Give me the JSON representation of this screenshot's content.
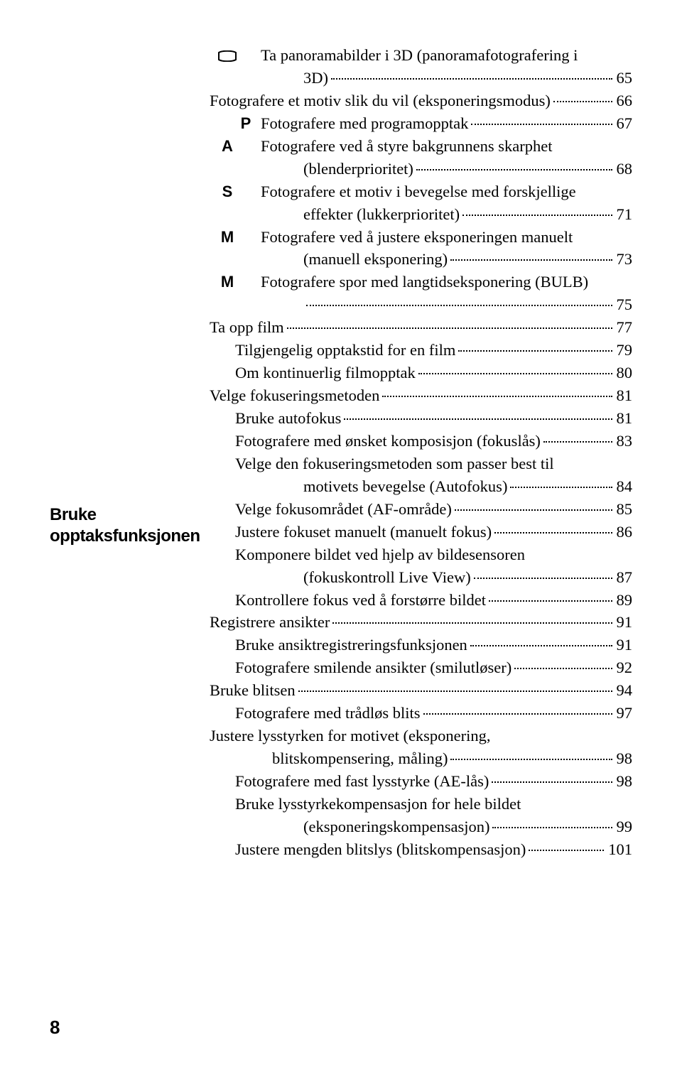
{
  "sidebar": {
    "label_line1": "Bruke",
    "label_line2": "opptaksfunksjonen"
  },
  "footer": {
    "page_number": "8"
  },
  "toc": [
    {
      "sym": "pano",
      "lv": 1,
      "wrap": true,
      "t1": "Ta panoramabilder i 3D (panoramafotografering i",
      "t2": "3D)",
      "p": "65"
    },
    {
      "sym": null,
      "lv": 0,
      "wrap": false,
      "t1": "Fotografere et motiv slik du vil (eksponeringsmodus)",
      "p": "66"
    },
    {
      "sym": "P",
      "lv": 1,
      "wrap": false,
      "t1": "Fotografere med programopptak",
      "p": "67"
    },
    {
      "sym": "A",
      "lv": 1,
      "wrap": true,
      "t1": "Fotografere ved å styre bakgrunnens skarphet",
      "t2": "(blenderprioritet)",
      "p": "68"
    },
    {
      "sym": "S",
      "lv": 1,
      "wrap": true,
      "t1": "Fotografere et motiv i bevegelse med forskjellige",
      "t2": "effekter (lukkerprioritet)",
      "p": "71"
    },
    {
      "sym": "M",
      "lv": 1,
      "wrap": true,
      "t1": "Fotografere ved å justere eksponeringen manuelt",
      "t2": "(manuell eksponering)",
      "p": "73"
    },
    {
      "sym": "M",
      "lv": 1,
      "wrap": true,
      "t1": "Fotografere spor med langtidseksponering (BULB)",
      "t2": "",
      "p": "75"
    },
    {
      "sym": null,
      "lv": 0,
      "wrap": false,
      "t1": "Ta opp film",
      "p": "77"
    },
    {
      "sym": null,
      "lv": 1,
      "wrap": false,
      "t1": "Tilgjengelig opptakstid for en film",
      "p": "79"
    },
    {
      "sym": null,
      "lv": 1,
      "wrap": false,
      "t1": "Om kontinuerlig filmopptak",
      "p": "80"
    },
    {
      "sym": null,
      "lv": 0,
      "wrap": false,
      "t1": "Velge fokuseringsmetoden",
      "p": "81"
    },
    {
      "sym": null,
      "lv": 1,
      "wrap": false,
      "t1": "Bruke autofokus",
      "p": "81"
    },
    {
      "sym": null,
      "lv": 1,
      "wrap": false,
      "t1": "Fotografere med ønsket komposisjon (fokuslås)",
      "p": "83"
    },
    {
      "sym": null,
      "lv": 1,
      "wrap": true,
      "t1": "Velge den fokuseringsmetoden som passer best til",
      "t2": "motivets bevegelse (Autofokus)",
      "p": "84"
    },
    {
      "sym": null,
      "lv": 1,
      "wrap": false,
      "t1": "Velge fokusområdet (AF-område)",
      "p": "85"
    },
    {
      "sym": null,
      "lv": 1,
      "wrap": false,
      "t1": "Justere fokuset manuelt (manuelt fokus)",
      "p": "86"
    },
    {
      "sym": null,
      "lv": 1,
      "wrap": true,
      "t1": "Komponere bildet ved hjelp av bildesensoren",
      "t2": "(fokuskontroll Live View)",
      "p": "87"
    },
    {
      "sym": null,
      "lv": 1,
      "wrap": false,
      "t1": "Kontrollere fokus ved å forstørre bildet",
      "p": "89"
    },
    {
      "sym": null,
      "lv": 0,
      "wrap": false,
      "t1": "Registrere ansikter",
      "p": "91"
    },
    {
      "sym": null,
      "lv": 1,
      "wrap": false,
      "t1": "Bruke ansiktregistreringsfunksjonen",
      "p": "91"
    },
    {
      "sym": null,
      "lv": 1,
      "wrap": false,
      "t1": "Fotografere smilende ansikter (smilutløser)",
      "p": "92"
    },
    {
      "sym": null,
      "lv": 0,
      "wrap": false,
      "t1": "Bruke blitsen",
      "p": "94"
    },
    {
      "sym": null,
      "lv": 1,
      "wrap": false,
      "t1": "Fotografere med trådløs blits",
      "p": "97"
    },
    {
      "sym": null,
      "lv": 0,
      "wrap": true,
      "t1": "Justere lysstyrken for motivet (eksponering,",
      "t2": "blitskompensering, måling)",
      "p": "98"
    },
    {
      "sym": null,
      "lv": 1,
      "wrap": false,
      "t1": "Fotografere med fast lysstyrke (AE-lås)",
      "p": "98"
    },
    {
      "sym": null,
      "lv": 1,
      "wrap": true,
      "t1": "Bruke lysstyrkekompensasjon for hele bildet",
      "t2": "(eksponeringskompensasjon)",
      "p": "99"
    },
    {
      "sym": null,
      "lv": 1,
      "wrap": false,
      "t1": "Justere mengden blitslys (blitskompensasjon)",
      "p": "101"
    }
  ]
}
